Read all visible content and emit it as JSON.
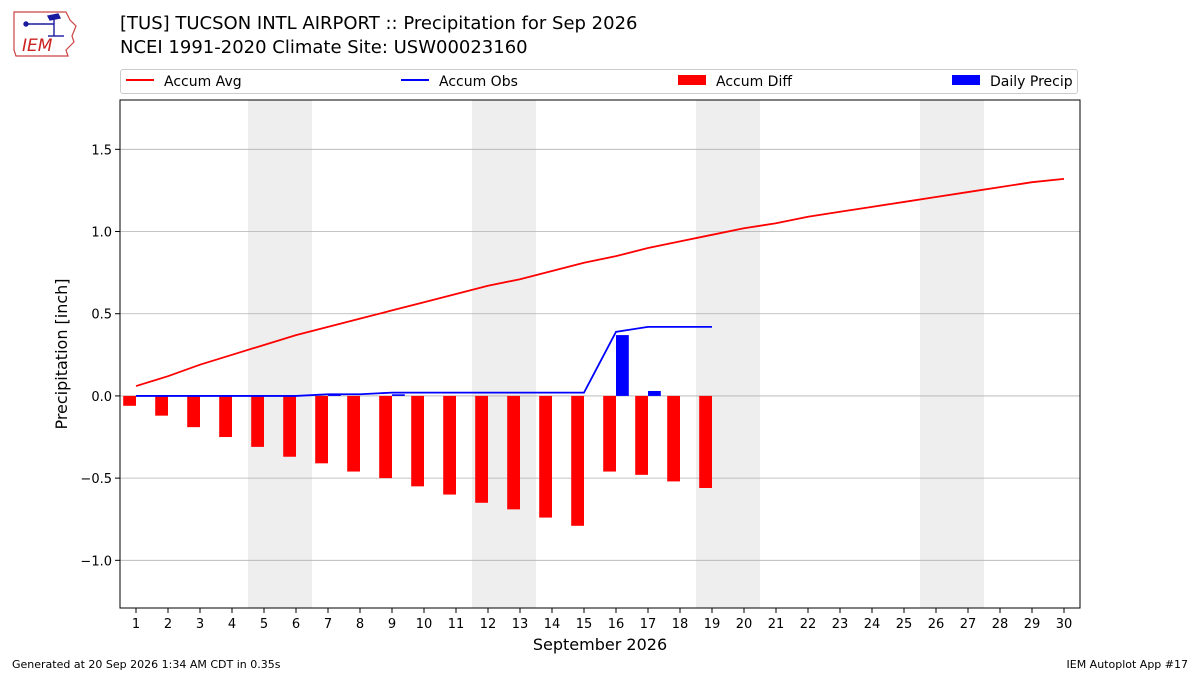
{
  "header": {
    "title_line1": "[TUS] TUCSON INTL AIRPORT :: Precipitation for Sep 2026",
    "title_line2": "NCEI 1991-2020 Climate Site: USW00023160"
  },
  "logo": {
    "text": "IEM"
  },
  "footer": {
    "left": "Generated at 20 Sep 2026 1:34 AM CDT in 0.35s",
    "right": "IEM Autoplot App #17"
  },
  "chart_data": {
    "type": "bar",
    "xlabel": "September 2026",
    "ylabel": "Precipitation [inch]",
    "xlim": [
      0.5,
      30.5
    ],
    "ylim": [
      -1.29,
      1.8
    ],
    "yticks": [
      -1.0,
      -0.5,
      0.0,
      0.5,
      1.0,
      1.5
    ],
    "ytick_labels": [
      "−1.0",
      "−0.5",
      "0.0",
      "0.5",
      "1.0",
      "1.5"
    ],
    "grid": "horizontal",
    "legend_position": "top",
    "weekend_shading": [
      [
        4.5,
        6.5
      ],
      [
        11.5,
        13.5
      ],
      [
        18.5,
        20.5
      ],
      [
        25.5,
        27.5
      ]
    ],
    "days": [
      1,
      2,
      3,
      4,
      5,
      6,
      7,
      8,
      9,
      10,
      11,
      12,
      13,
      14,
      15,
      16,
      17,
      18,
      19,
      20,
      21,
      22,
      23,
      24,
      25,
      26,
      27,
      28,
      29,
      30
    ],
    "series": [
      {
        "name": "Accum Avg",
        "type": "line",
        "color": "#ff0000",
        "values": [
          0.06,
          0.12,
          0.19,
          0.25,
          0.31,
          0.37,
          0.42,
          0.47,
          0.52,
          0.57,
          0.62,
          0.67,
          0.71,
          0.76,
          0.81,
          0.85,
          0.9,
          0.94,
          0.98,
          1.02,
          1.05,
          1.09,
          1.12,
          1.15,
          1.18,
          1.21,
          1.24,
          1.27,
          1.3,
          1.32
        ]
      },
      {
        "name": "Accum Obs",
        "type": "line",
        "color": "#0000ff",
        "values": [
          0.0,
          0.0,
          0.0,
          0.0,
          0.0,
          0.0,
          0.01,
          0.01,
          0.02,
          0.02,
          0.02,
          0.02,
          0.02,
          0.02,
          0.02,
          0.39,
          0.42,
          0.42,
          0.42
        ]
      },
      {
        "name": "Accum Diff",
        "type": "bar",
        "color": "#ff0000",
        "values": [
          -0.06,
          -0.12,
          -0.19,
          -0.25,
          -0.31,
          -0.37,
          -0.41,
          -0.46,
          -0.5,
          -0.55,
          -0.6,
          -0.65,
          -0.69,
          -0.74,
          -0.79,
          -0.46,
          -0.48,
          -0.52,
          -0.56
        ]
      },
      {
        "name": "Daily Precip",
        "type": "bar",
        "color": "#0000ff",
        "values": [
          0.0,
          0.0,
          0.0,
          0.0,
          0.0,
          0.0,
          0.01,
          0.0,
          0.01,
          0.0,
          0.0,
          0.0,
          0.0,
          0.0,
          0.0,
          0.37,
          0.03,
          0.0,
          0.0
        ]
      }
    ]
  }
}
